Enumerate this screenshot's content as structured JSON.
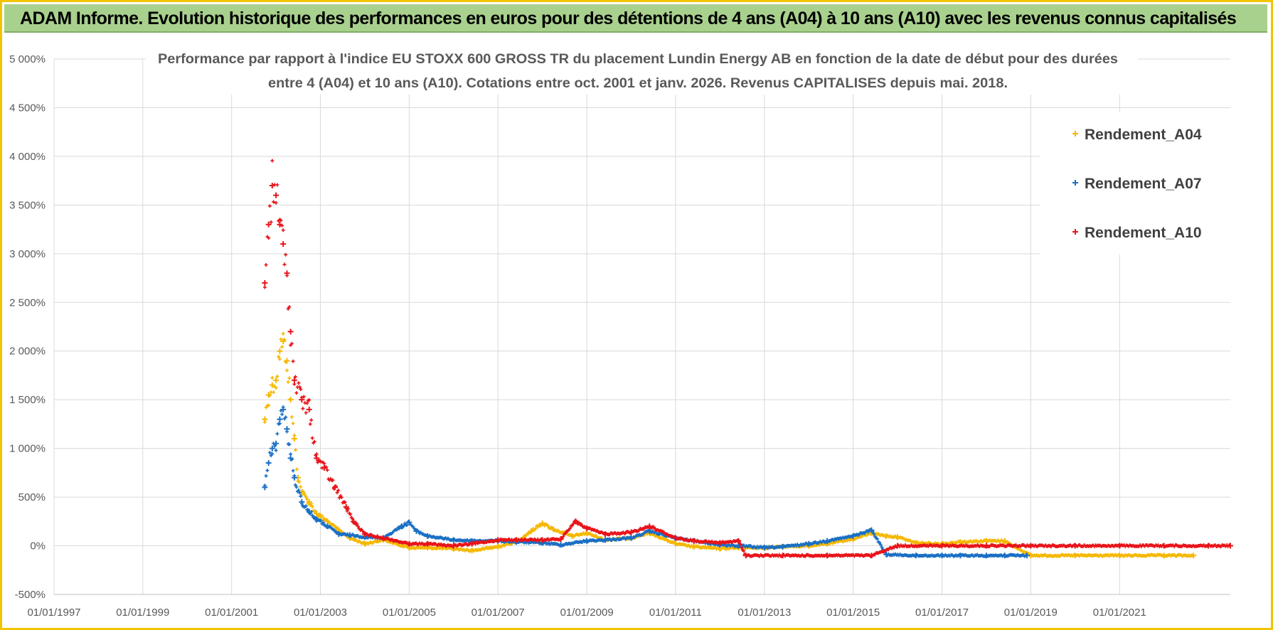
{
  "header": {
    "banner_title": "ADAM Informe. Evolution historique des performances en euros pour des détentions de 4 ans (A04) à 10 ans (A10) avec les revenus connus capitalisés"
  },
  "colors": {
    "banner_bg": "#a9d18e",
    "frame": "#f2c400",
    "A04": "#f5b800",
    "A07": "#1a6fc4",
    "A10": "#e8141a",
    "grid": "#d9d9d9"
  },
  "chart_data": {
    "type": "scatter",
    "title_line1": "Performance par rapport à l'indice EU STOXX 600 GROSS TR  du placement Lundin Energy AB en fonction de la date de début pour des durées",
    "title_line2": "entre 4 (A04) et 10 ans (A10).  Cotations entre oct. 2001 et janv. 2026.  Revenus CAPITALISES depuis mai. 2018.",
    "xlabel": "",
    "ylabel": "",
    "x_range": [
      "1997-01-01",
      "2023-07-01"
    ],
    "ylim": [
      -500,
      5000
    ],
    "y_ticks": [
      5000,
      4500,
      4000,
      3500,
      3000,
      2500,
      2000,
      1500,
      1000,
      500,
      0,
      -500
    ],
    "y_tick_labels": [
      "5 000%",
      "4 500%",
      "4 000%",
      "3 500%",
      "3 000%",
      "2 500%",
      "2 000%",
      "1 500%",
      "1 000%",
      "500%",
      "0%",
      "-500%"
    ],
    "x_ticks": [
      "1997-01-01",
      "1999-01-01",
      "2001-01-01",
      "2003-01-01",
      "2005-01-01",
      "2007-01-01",
      "2009-01-01",
      "2011-01-01",
      "2013-01-01",
      "2015-01-01",
      "2017-01-01",
      "2019-01-01",
      "2021-01-01"
    ],
    "x_tick_labels": [
      "01/01/1997",
      "01/01/1999",
      "01/01/2001",
      "01/01/2003",
      "01/01/2005",
      "01/01/2007",
      "01/01/2009",
      "01/01/2011",
      "01/01/2013",
      "01/01/2015",
      "01/01/2017",
      "01/01/2019",
      "01/01/2021"
    ],
    "grid": true,
    "marker": "+",
    "legend_position": "top-right",
    "series": [
      {
        "name": "Rendement_A04",
        "color": "#f5b800",
        "points": [
          [
            "2001-10-01",
            1300
          ],
          [
            "2001-11-01",
            1550
          ],
          [
            "2001-12-01",
            1650
          ],
          [
            "2002-01-01",
            1700
          ],
          [
            "2002-02-01",
            2000
          ],
          [
            "2002-03-01",
            2100
          ],
          [
            "2002-04-01",
            1900
          ],
          [
            "2002-05-01",
            1500
          ],
          [
            "2002-06-01",
            1100
          ],
          [
            "2002-07-01",
            700
          ],
          [
            "2002-08-01",
            550
          ],
          [
            "2002-10-01",
            450
          ],
          [
            "2002-12-01",
            330
          ],
          [
            "2003-03-01",
            250
          ],
          [
            "2003-06-01",
            160
          ],
          [
            "2003-09-01",
            80
          ],
          [
            "2004-01-01",
            20
          ],
          [
            "2004-06-01",
            60
          ],
          [
            "2005-01-01",
            -20
          ],
          [
            "2005-06-01",
            -20
          ],
          [
            "2006-01-01",
            -30
          ],
          [
            "2006-06-01",
            -50
          ],
          [
            "2007-01-01",
            -10
          ],
          [
            "2007-06-01",
            40
          ],
          [
            "2007-10-01",
            150
          ],
          [
            "2008-01-01",
            230
          ],
          [
            "2008-04-01",
            170
          ],
          [
            "2008-09-01",
            100
          ],
          [
            "2009-01-01",
            130
          ],
          [
            "2009-06-01",
            60
          ],
          [
            "2010-01-01",
            80
          ],
          [
            "2010-06-01",
            130
          ],
          [
            "2011-01-01",
            20
          ],
          [
            "2011-06-01",
            -10
          ],
          [
            "2012-01-01",
            -30
          ],
          [
            "2012-06-01",
            -20
          ],
          [
            "2013-01-01",
            -20
          ],
          [
            "2013-06-01",
            -10
          ],
          [
            "2014-01-01",
            0
          ],
          [
            "2014-06-01",
            20
          ],
          [
            "2015-01-01",
            70
          ],
          [
            "2015-06-01",
            130
          ],
          [
            "2015-10-01",
            100
          ],
          [
            "2016-01-01",
            90
          ],
          [
            "2016-06-01",
            30
          ],
          [
            "2017-01-01",
            20
          ],
          [
            "2017-06-01",
            40
          ],
          [
            "2018-01-01",
            50
          ],
          [
            "2018-06-01",
            50
          ],
          [
            "2019-01-01",
            -100
          ],
          [
            "2020-01-01",
            -100
          ],
          [
            "2021-01-01",
            -100
          ],
          [
            "2022-01-01",
            -100
          ],
          [
            "2022-09-01",
            -100
          ]
        ]
      },
      {
        "name": "Rendement_A07",
        "color": "#1a6fc4",
        "points": [
          [
            "2001-10-01",
            600
          ],
          [
            "2001-11-01",
            850
          ],
          [
            "2001-12-01",
            1000
          ],
          [
            "2002-01-01",
            1050
          ],
          [
            "2002-02-01",
            1300
          ],
          [
            "2002-03-01",
            1400
          ],
          [
            "2002-04-01",
            1200
          ],
          [
            "2002-05-01",
            900
          ],
          [
            "2002-06-01",
            700
          ],
          [
            "2002-08-01",
            450
          ],
          [
            "2002-10-01",
            350
          ],
          [
            "2002-12-01",
            270
          ],
          [
            "2003-03-01",
            200
          ],
          [
            "2003-06-01",
            120
          ],
          [
            "2003-09-01",
            110
          ],
          [
            "2004-01-01",
            90
          ],
          [
            "2004-06-01",
            80
          ],
          [
            "2004-11-01",
            200
          ],
          [
            "2005-01-01",
            240
          ],
          [
            "2005-03-01",
            150
          ],
          [
            "2005-06-01",
            100
          ],
          [
            "2006-01-01",
            60
          ],
          [
            "2006-06-01",
            50
          ],
          [
            "2007-01-01",
            50
          ],
          [
            "2007-06-01",
            40
          ],
          [
            "2008-01-01",
            30
          ],
          [
            "2008-06-01",
            10
          ],
          [
            "2009-01-01",
            50
          ],
          [
            "2009-06-01",
            60
          ],
          [
            "2010-01-01",
            80
          ],
          [
            "2010-06-01",
            150
          ],
          [
            "2011-01-01",
            80
          ],
          [
            "2011-06-01",
            50
          ],
          [
            "2012-01-01",
            10
          ],
          [
            "2012-06-01",
            0
          ],
          [
            "2013-01-01",
            -20
          ],
          [
            "2013-06-01",
            -10
          ],
          [
            "2014-01-01",
            20
          ],
          [
            "2014-06-01",
            50
          ],
          [
            "2015-01-01",
            100
          ],
          [
            "2015-06-01",
            160
          ],
          [
            "2015-10-01",
            -90
          ],
          [
            "2016-06-01",
            -100
          ],
          [
            "2017-01-01",
            -100
          ],
          [
            "2017-06-01",
            -100
          ],
          [
            "2018-01-01",
            -100
          ],
          [
            "2018-06-01",
            -100
          ],
          [
            "2018-12-01",
            -100
          ]
        ]
      },
      {
        "name": "Rendement_A10",
        "color": "#e8141a",
        "points": [
          [
            "2001-10-01",
            2700
          ],
          [
            "2001-11-01",
            3300
          ],
          [
            "2001-12-01",
            3700
          ],
          [
            "2002-01-01",
            3600
          ],
          [
            "2002-02-01",
            3300
          ],
          [
            "2002-03-01",
            3100
          ],
          [
            "2002-04-01",
            2800
          ],
          [
            "2002-05-01",
            2200
          ],
          [
            "2002-06-01",
            1700
          ],
          [
            "2002-08-01",
            1500
          ],
          [
            "2002-10-01",
            1400
          ],
          [
            "2002-12-01",
            900
          ],
          [
            "2003-02-01",
            800
          ],
          [
            "2003-05-01",
            600
          ],
          [
            "2003-08-01",
            400
          ],
          [
            "2003-10-01",
            250
          ],
          [
            "2004-01-01",
            120
          ],
          [
            "2004-06-01",
            80
          ],
          [
            "2005-01-01",
            20
          ],
          [
            "2005-06-01",
            20
          ],
          [
            "2006-01-01",
            0
          ],
          [
            "2006-06-01",
            20
          ],
          [
            "2007-01-01",
            60
          ],
          [
            "2007-06-01",
            60
          ],
          [
            "2008-01-01",
            60
          ],
          [
            "2008-06-01",
            70
          ],
          [
            "2008-10-01",
            250
          ],
          [
            "2009-01-01",
            180
          ],
          [
            "2009-06-01",
            120
          ],
          [
            "2010-01-01",
            140
          ],
          [
            "2010-06-01",
            200
          ],
          [
            "2011-01-01",
            80
          ],
          [
            "2011-06-01",
            50
          ],
          [
            "2012-01-01",
            30
          ],
          [
            "2012-06-01",
            50
          ],
          [
            "2012-08-01",
            -100
          ],
          [
            "2013-06-01",
            -100
          ],
          [
            "2014-06-01",
            -100
          ],
          [
            "2015-06-01",
            -100
          ],
          [
            "2016-01-01",
            0
          ],
          [
            "2017-01-01",
            0
          ],
          [
            "2018-01-01",
            0
          ],
          [
            "2019-01-01",
            0
          ],
          [
            "2020-01-01",
            0
          ],
          [
            "2021-01-01",
            0
          ],
          [
            "2022-01-01",
            0
          ],
          [
            "2023-01-01",
            0
          ],
          [
            "2023-07-01",
            0
          ]
        ]
      }
    ]
  }
}
